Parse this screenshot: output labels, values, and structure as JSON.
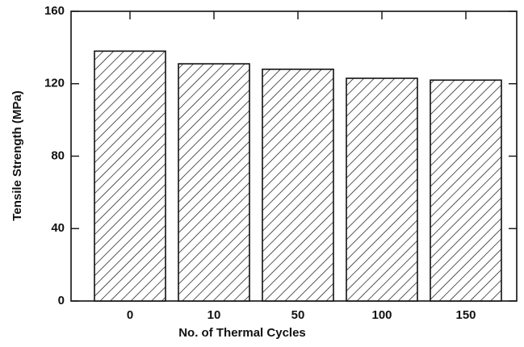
{
  "chart_data": {
    "type": "bar",
    "x_label": "No. of Thermal Cycles",
    "y_label": "Tensile Strength (MPa)",
    "categories": [
      "0",
      "10",
      "50",
      "100",
      "150"
    ],
    "values": [
      138,
      131,
      128,
      123,
      122
    ],
    "color": "#ffffff",
    "hatch": "diagonal",
    "ylim": [
      0,
      160
    ],
    "yticks": [
      0,
      40,
      80,
      120,
      160
    ],
    "grid": false
  }
}
